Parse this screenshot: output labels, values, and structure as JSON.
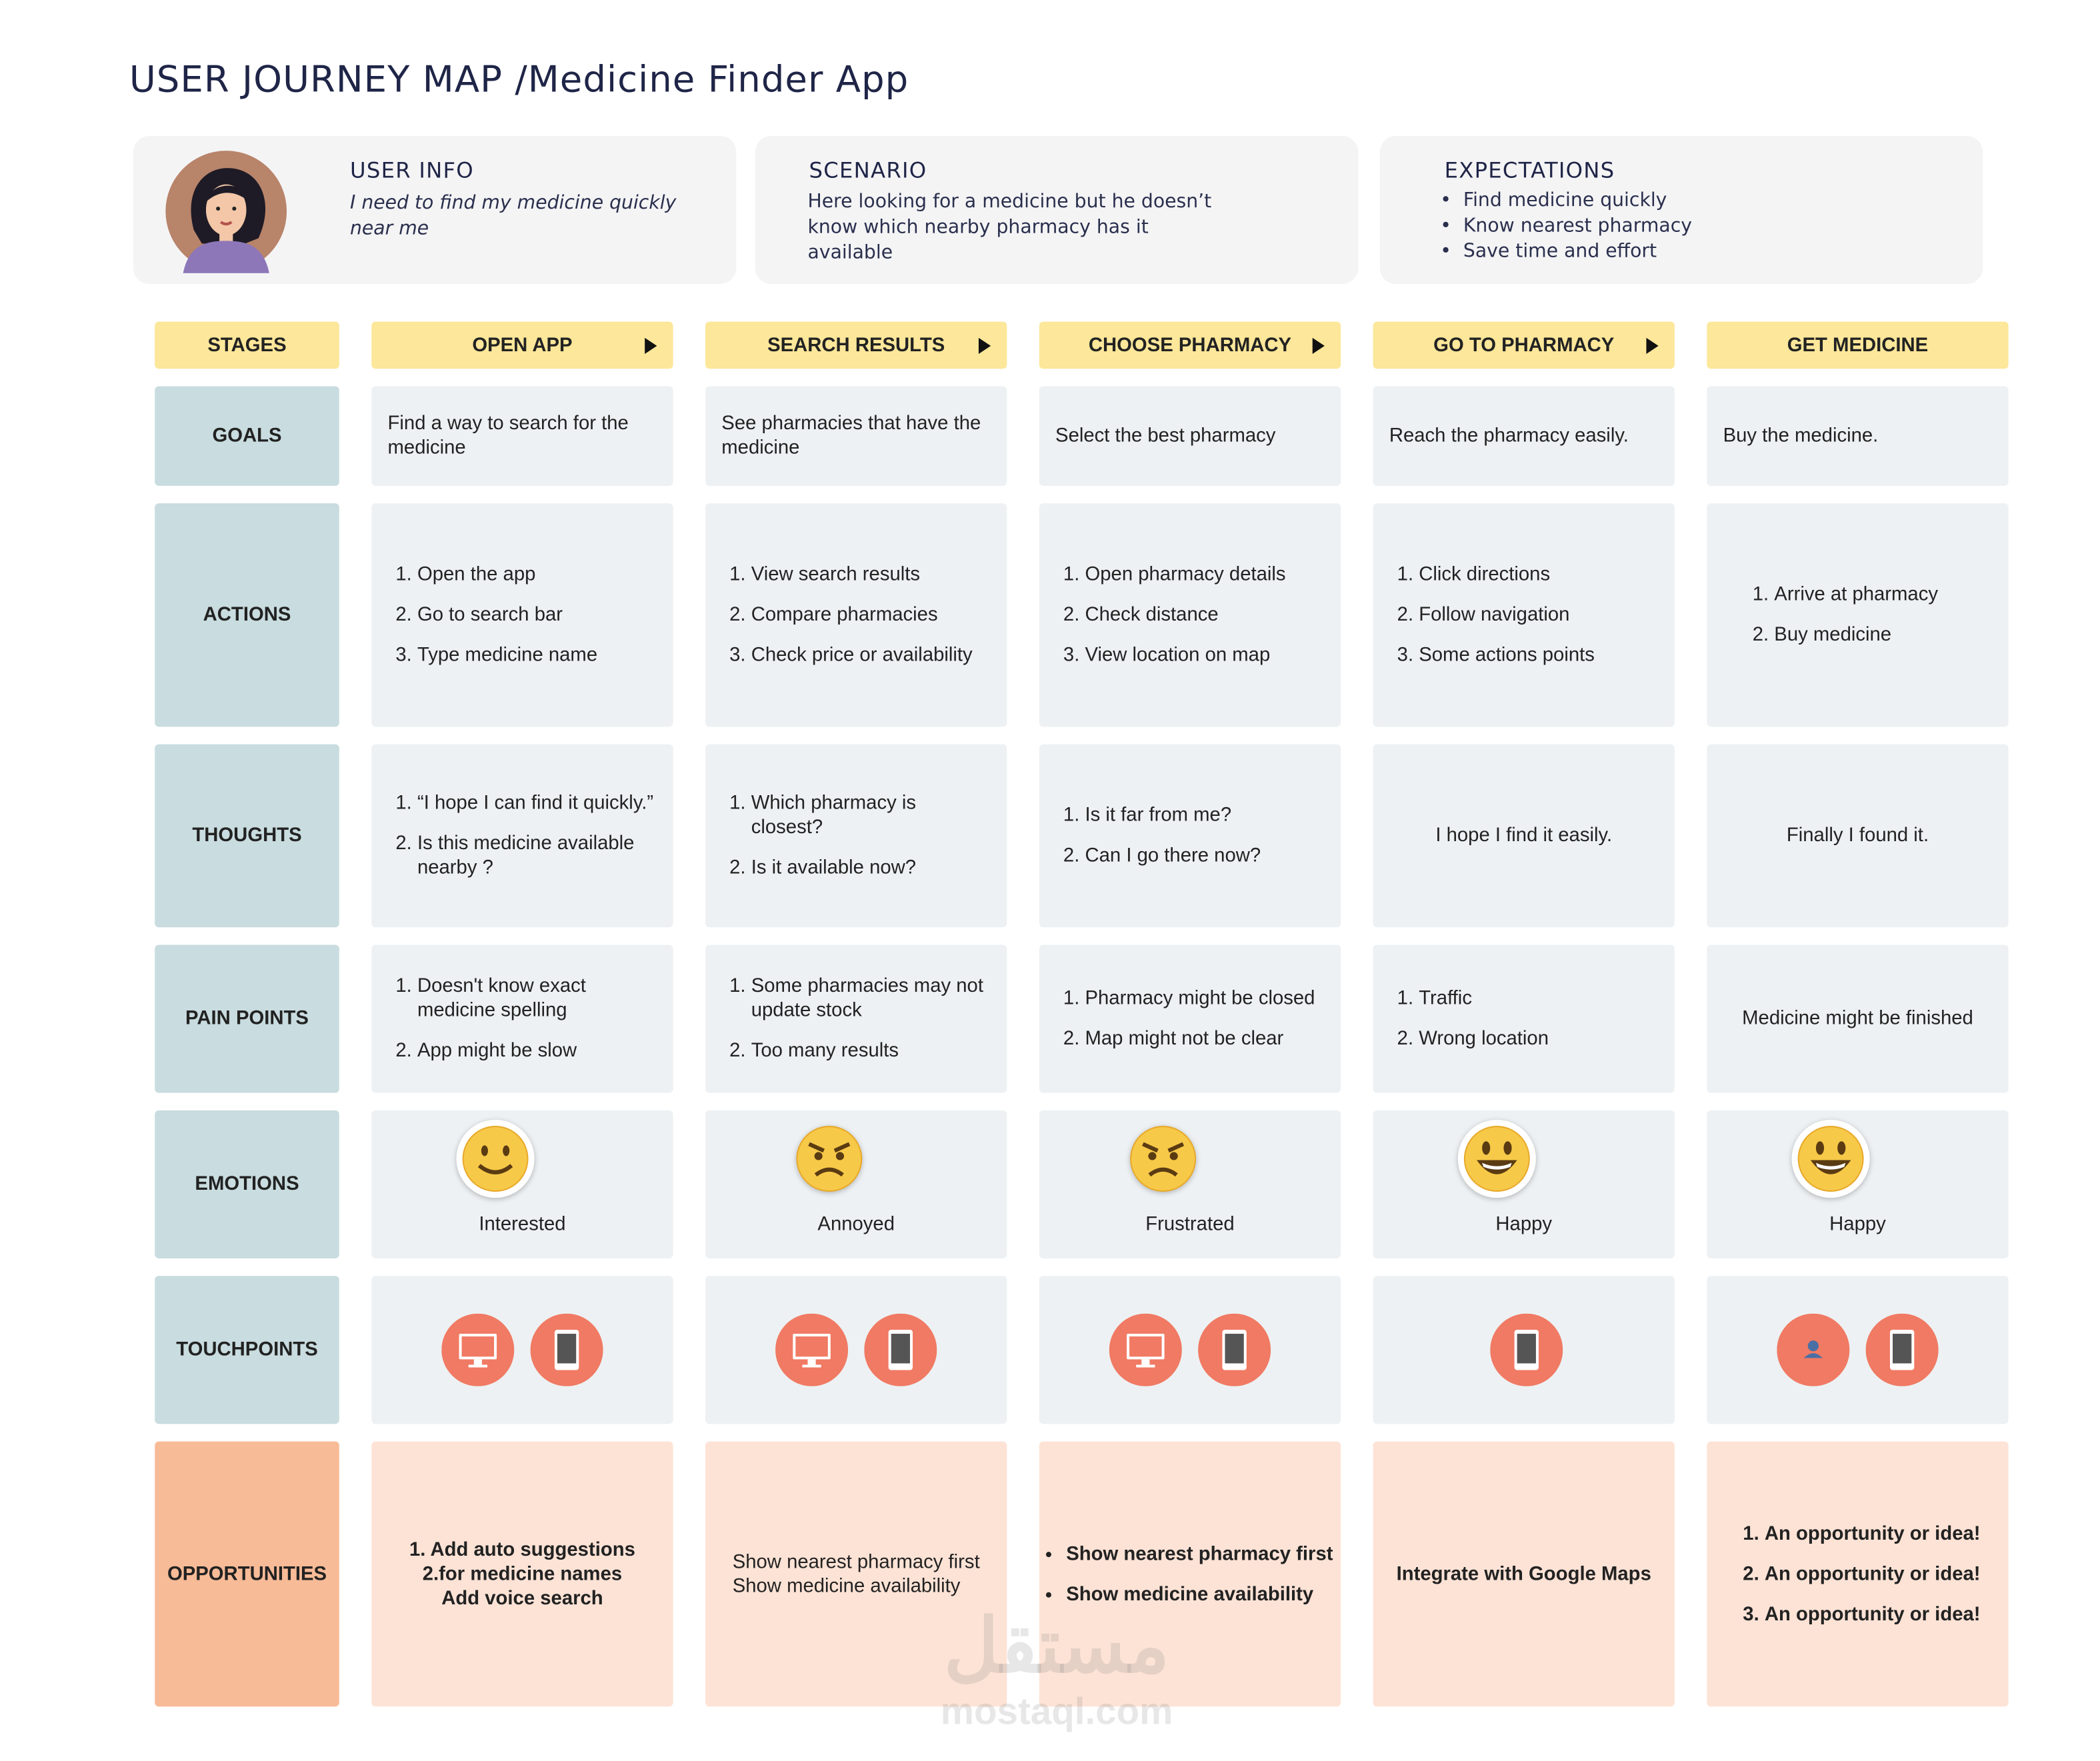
{
  "header": {
    "title": "USER JOURNEY MAP /Medicine Finder App"
  },
  "cards": [
    {
      "title": "USER INFO",
      "text": "I need to find my medicine quickly near me"
    },
    {
      "title": "SCENARIO",
      "text": "Here  looking for a medicine but he doesn’t know which nearby pharmacy has it available"
    },
    {
      "title": "EXPECTATIONS",
      "items": [
        "Find medicine quickly",
        "Know nearest pharmacy",
        "Save time and effort"
      ]
    }
  ],
  "stages": {
    "label": "STAGES",
    "names": [
      "OPEN APP",
      "SEARCH RESULTS",
      "CHOOSE PHARMACY",
      "GO TO PHARMACY",
      "GET MEDICINE"
    ]
  },
  "rows": [
    {
      "label": "GOALS",
      "cells": [
        {
          "text": "Find a way to search for the medicine"
        },
        {
          "text": "See pharmacies that have the medicine"
        },
        {
          "text": "Select the best pharmacy"
        },
        {
          "text": "Reach the pharmacy easily."
        },
        {
          "text": "Buy the medicine."
        }
      ]
    },
    {
      "label": "ACTIONS",
      "cells": [
        {
          "numbered": [
            "Open the app",
            "Go to search bar",
            "Type medicine name"
          ]
        },
        {
          "numbered": [
            "View search results",
            "Compare pharmacies",
            "Check price or availability"
          ]
        },
        {
          "numbered": [
            "Open pharmacy details",
            "Check distance",
            "View location on map"
          ]
        },
        {
          "numbered": [
            "Click directions",
            "Follow navigation",
            "Some actions points"
          ]
        },
        {
          "numbered": [
            "Arrive at pharmacy",
            "Buy medicine"
          ]
        }
      ]
    },
    {
      "label": "THOUGHTS",
      "cells": [
        {
          "numbered": [
            "“I hope I can find it quickly.”",
            "Is this medicine available nearby ?"
          ]
        },
        {
          "numbered": [
            "Which pharmacy is closest?",
            "Is it available now?"
          ]
        },
        {
          "numbered": [
            "Is it far from me?",
            "Can I go there now?"
          ]
        },
        {
          "text": "I hope I find it easily."
        },
        {
          "text": "Finally I found it."
        }
      ]
    },
    {
      "label": "PAIN POINTS",
      "cells": [
        {
          "numbered": [
            "Doesn't know exact medicine spelling",
            "App might be slow"
          ]
        },
        {
          "numbered": [
            "Some pharmacies may not update stock",
            "Too many results"
          ]
        },
        {
          "numbered": [
            "Pharmacy might be closed",
            "Map might not be clear"
          ]
        },
        {
          "numbered": [
            "Traffic",
            "Wrong location"
          ]
        },
        {
          "text": "Medicine might be finished"
        }
      ]
    },
    {
      "label": "EMOTIONS",
      "cells": [
        {
          "emotion": "Interested"
        },
        {
          "emotion": "Annoyed"
        },
        {
          "emotion": "Frustrated"
        },
        {
          "emotion": "Happy"
        },
        {
          "emotion": "Happy"
        }
      ]
    },
    {
      "label": "TOUCHPOINTS",
      "cells": [
        {},
        {},
        {},
        {},
        {}
      ]
    },
    {
      "label": "OPPORTUNITIES",
      "cells": [
        {
          "lines": [
            "1. Add auto suggestions",
            "2.for medicine names",
            "Add voice search"
          ]
        },
        {
          "lines": [
            "Show nearest pharmacy first",
            "Show medicine availability"
          ]
        },
        {
          "bullets": [
            "Show nearest pharmacy first",
            "Show medicine availability"
          ]
        },
        {
          "text": "Integrate with Google Maps"
        },
        {
          "numbered": [
            "An opportunity or idea!",
            "An opportunity or idea!",
            "An opportunity or idea!"
          ]
        }
      ]
    }
  ],
  "watermark": {
    "arabic": "مستقل",
    "latin": "mostaql.com"
  }
}
